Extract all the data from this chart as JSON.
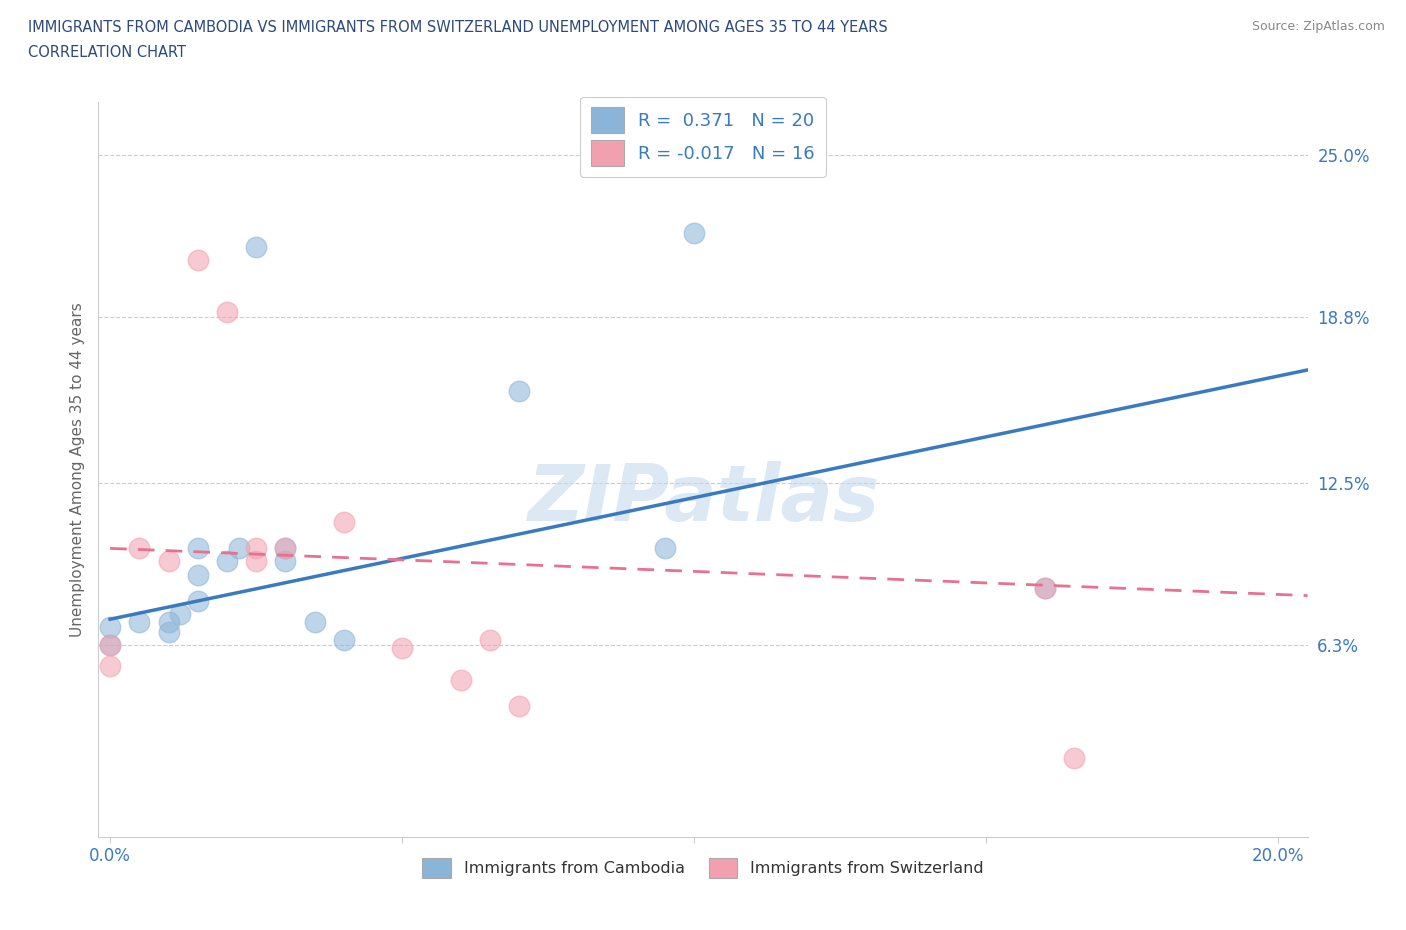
{
  "title_line1": "IMMIGRANTS FROM CAMBODIA VS IMMIGRANTS FROM SWITZERLAND UNEMPLOYMENT AMONG AGES 35 TO 44 YEARS",
  "title_line2": "CORRELATION CHART",
  "source": "Source: ZipAtlas.com",
  "ylabel": "Unemployment Among Ages 35 to 44 years",
  "xlim": [
    -0.002,
    0.205
  ],
  "ylim": [
    -0.01,
    0.27
  ],
  "yticks": [
    0.063,
    0.125,
    0.188,
    0.25
  ],
  "ytick_labels": [
    "6.3%",
    "12.5%",
    "18.8%",
    "25.0%"
  ],
  "xticks": [
    0.0,
    0.05,
    0.1,
    0.15,
    0.2
  ],
  "xtick_labels": [
    "0.0%",
    "",
    "",
    "",
    "20.0%"
  ],
  "cambodia_color": "#8ab4d8",
  "switzerland_color": "#f2a0b0",
  "trend_blue": "#3a7abf",
  "trend_pink": "#e87090",
  "watermark": "ZIPatlas",
  "cambodia_x": [
    0.0,
    0.0,
    0.005,
    0.01,
    0.01,
    0.012,
    0.015,
    0.015,
    0.015,
    0.02,
    0.022,
    0.025,
    0.03,
    0.03,
    0.035,
    0.04,
    0.07,
    0.095,
    0.1,
    0.16
  ],
  "cambodia_y": [
    0.063,
    0.07,
    0.072,
    0.068,
    0.072,
    0.075,
    0.08,
    0.09,
    0.1,
    0.095,
    0.1,
    0.215,
    0.095,
    0.1,
    0.072,
    0.065,
    0.16,
    0.1,
    0.22,
    0.085
  ],
  "switzerland_x": [
    0.0,
    0.0,
    0.005,
    0.01,
    0.015,
    0.02,
    0.025,
    0.025,
    0.03,
    0.04,
    0.05,
    0.06,
    0.065,
    0.07,
    0.16,
    0.165
  ],
  "switzerland_y": [
    0.063,
    0.055,
    0.1,
    0.095,
    0.21,
    0.19,
    0.1,
    0.095,
    0.1,
    0.11,
    0.062,
    0.05,
    0.065,
    0.04,
    0.085,
    0.02
  ],
  "trend_blue_x0": 0.0,
  "trend_blue_x1": 0.205,
  "trend_blue_y0": 0.073,
  "trend_blue_y1": 0.168,
  "trend_pink_x0": 0.0,
  "trend_pink_x1": 0.205,
  "trend_pink_y0": 0.1,
  "trend_pink_y1": 0.082
}
